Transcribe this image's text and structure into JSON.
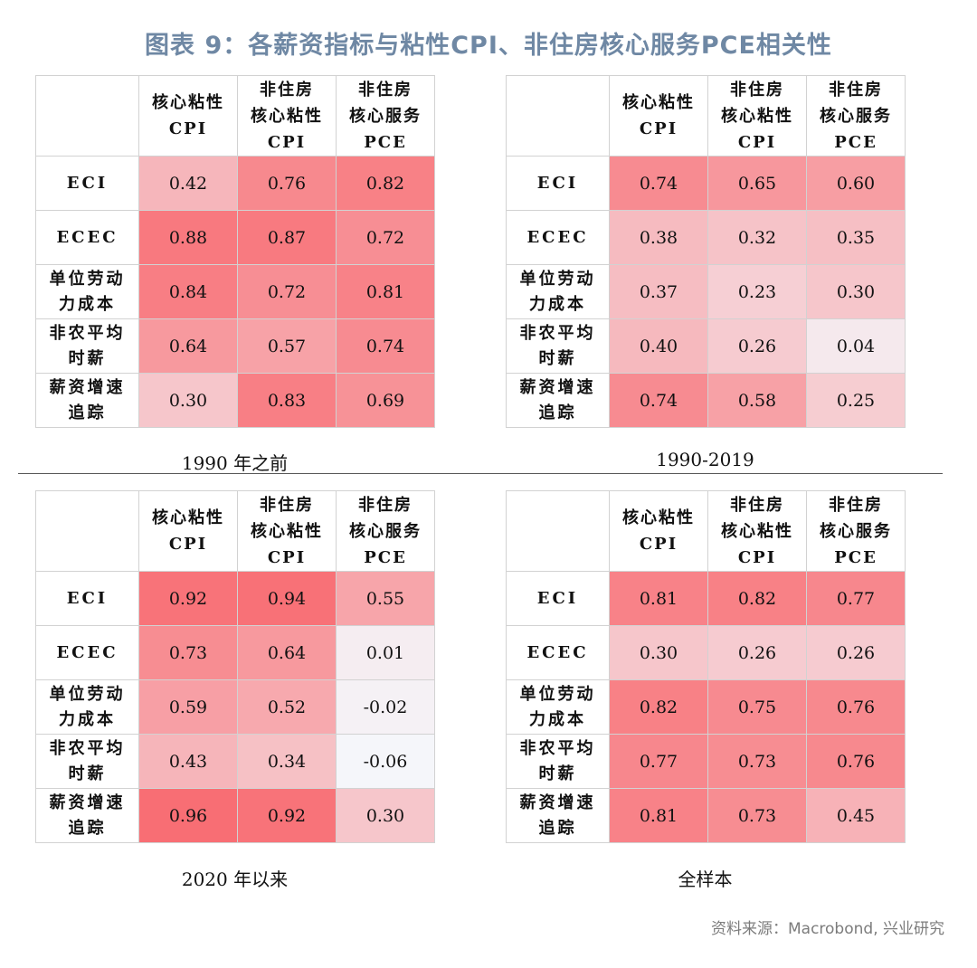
{
  "title": "图表 9：各薪资指标与粘性CPI、非住房核心服务PCE相关性",
  "column_headers": [
    [
      "核心粘性",
      "CPI"
    ],
    [
      "非住房",
      "核心粘性",
      "CPI"
    ],
    [
      "非住房",
      "核心服务",
      "PCE"
    ]
  ],
  "row_headers": [
    [
      "ECI"
    ],
    [
      "ECEC"
    ],
    [
      "单位劳动",
      "力成本"
    ],
    [
      "非农平均",
      "时薪"
    ],
    [
      "薪资增速",
      "追踪"
    ]
  ],
  "source": "资料来源：Macrobond, 兴业研究",
  "colors": {
    "max": "#f86e74",
    "min": "#f5f6fa",
    "title": "#6f88a4"
  },
  "chart_data": [
    {
      "type": "heatmap",
      "title": "1990 年之前",
      "rows": [
        "ECI",
        "ECEC",
        "单位劳动力成本",
        "非农平均时薪",
        "薪资增速追踪"
      ],
      "columns": [
        "核心粘性CPI",
        "非住房核心粘性CPI",
        "非住房核心服务PCE"
      ],
      "values": [
        [
          0.42,
          0.76,
          0.82
        ],
        [
          0.88,
          0.87,
          0.72
        ],
        [
          0.84,
          0.72,
          0.81
        ],
        [
          0.64,
          0.57,
          0.74
        ],
        [
          0.3,
          0.83,
          0.69
        ]
      ]
    },
    {
      "type": "heatmap",
      "title": "1990-2019",
      "rows": [
        "ECI",
        "ECEC",
        "单位劳动力成本",
        "非农平均时薪",
        "薪资增速追踪"
      ],
      "columns": [
        "核心粘性CPI",
        "非住房核心粘性CPI",
        "非住房核心服务PCE"
      ],
      "values": [
        [
          0.74,
          0.65,
          0.6
        ],
        [
          0.38,
          0.32,
          0.35
        ],
        [
          0.37,
          0.23,
          0.3
        ],
        [
          0.4,
          0.26,
          0.04
        ],
        [
          0.74,
          0.58,
          0.25
        ]
      ]
    },
    {
      "type": "heatmap",
      "title": "2020 年以来",
      "rows": [
        "ECI",
        "ECEC",
        "单位劳动力成本",
        "非农平均时薪",
        "薪资增速追踪"
      ],
      "columns": [
        "核心粘性CPI",
        "非住房核心粘性CPI",
        "非住房核心服务PCE"
      ],
      "values": [
        [
          0.92,
          0.94,
          0.55
        ],
        [
          0.73,
          0.64,
          0.01
        ],
        [
          0.59,
          0.52,
          -0.02
        ],
        [
          0.43,
          0.34,
          -0.06
        ],
        [
          0.96,
          0.92,
          0.3
        ]
      ]
    },
    {
      "type": "heatmap",
      "title": "全样本",
      "rows": [
        "ECI",
        "ECEC",
        "单位劳动力成本",
        "非农平均时薪",
        "薪资增速追踪"
      ],
      "columns": [
        "核心粘性CPI",
        "非住房核心粘性CPI",
        "非住房核心服务PCE"
      ],
      "values": [
        [
          0.81,
          0.82,
          0.77
        ],
        [
          0.3,
          0.26,
          0.26
        ],
        [
          0.82,
          0.75,
          0.76
        ],
        [
          0.77,
          0.73,
          0.76
        ],
        [
          0.81,
          0.73,
          0.45
        ]
      ]
    }
  ]
}
